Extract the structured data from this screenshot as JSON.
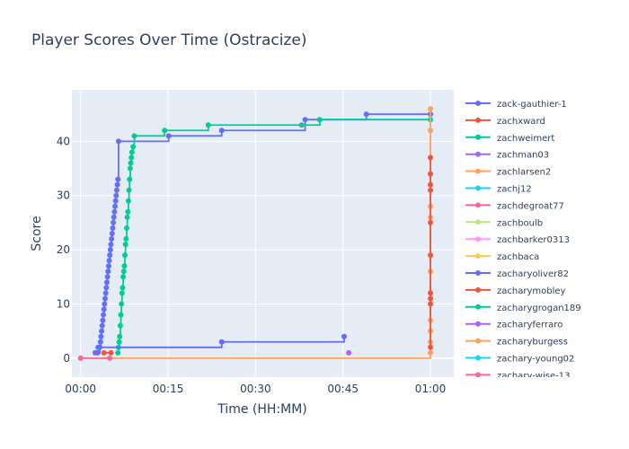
{
  "chart_data": {
    "type": "line",
    "line_shape": "step",
    "title": "Player Scores Over Time (Ostracize)",
    "xlabel": "Time (HH:MM)",
    "ylabel": "Score",
    "x_unit": "minutes",
    "xlim": [
      -1.5,
      64
    ],
    "ylim": [
      -3.5,
      49.5
    ],
    "x_ticks": [
      {
        "value": 0,
        "label": "00:00"
      },
      {
        "value": 15,
        "label": "00:15"
      },
      {
        "value": 30,
        "label": "00:30"
      },
      {
        "value": 45,
        "label": "00:45"
      },
      {
        "value": 60,
        "label": "01:00"
      }
    ],
    "y_ticks": [
      0,
      10,
      20,
      30,
      40
    ],
    "grid": true,
    "legend_position": "right",
    "series": [
      {
        "name": "zack-gauthier-1",
        "color": "#636efa",
        "x": [
          2.5,
          2.9,
          3.3,
          3.4,
          3.5,
          3.6,
          3.7,
          3.8,
          3.9,
          4.0,
          4.1,
          4.2,
          4.3,
          4.4,
          4.5,
          4.6,
          4.7,
          4.8,
          4.9,
          5.0,
          5.1,
          5.2,
          5.3,
          5.4,
          5.5,
          5.6,
          5.7,
          5.8,
          5.9,
          6.0,
          6.1,
          6.2,
          6.3,
          6.4,
          6.5,
          15.1,
          24.2,
          38.5,
          49.0,
          60.0
        ],
        "y": [
          1,
          1,
          2,
          3,
          4,
          5,
          6,
          7,
          8,
          9,
          10,
          11,
          12,
          13,
          14,
          15,
          16,
          17,
          18,
          19,
          20,
          21,
          22,
          23,
          24,
          25,
          26,
          27,
          28,
          29,
          30,
          31,
          32,
          33,
          40,
          41,
          42,
          44,
          45,
          45
        ]
      },
      {
        "name": "zachxward",
        "color": "#EF553B",
        "x": [
          4.0,
          5.2
        ],
        "y": [
          1,
          1
        ]
      },
      {
        "name": "zachweimert",
        "color": "#00cc96",
        "x": [
          6.4,
          6.5,
          6.6,
          6.7,
          6.8,
          6.9,
          7.0,
          7.1,
          7.2,
          7.3,
          7.4,
          7.5,
          7.6,
          7.7,
          7.8,
          7.9,
          8.0,
          8.1,
          8.2,
          8.3,
          8.4,
          8.5,
          8.6,
          8.7,
          8.8,
          9.0,
          9.2,
          14.4,
          21.9,
          37.9,
          41.0,
          60.0
        ],
        "y": [
          1,
          2,
          3,
          4,
          6,
          8,
          10,
          12,
          13,
          15,
          16,
          17,
          19,
          21,
          22,
          24,
          26,
          27,
          29,
          31,
          33,
          35,
          36,
          37,
          38,
          39,
          41,
          42,
          43,
          43,
          44,
          44
        ]
      },
      {
        "name": "zachman03",
        "color": "#ab63fa",
        "x": [
          46.0
        ],
        "y": [
          1
        ]
      },
      {
        "name": "zachlarsen2",
        "color": "#FFA15A",
        "x": [
          0.0,
          60.0,
          60.0,
          60.0,
          60.0,
          60.0,
          60.0,
          60.0,
          60.0,
          60.0
        ],
        "y": [
          0,
          1,
          3,
          5,
          7,
          16,
          26,
          28,
          42,
          46
        ]
      },
      {
        "name": "zachj12",
        "color": "#19d3f3",
        "x": [],
        "y": []
      },
      {
        "name": "zachdegroat77",
        "color": "#FF6692",
        "x": [
          0.0,
          5.0
        ],
        "y": [
          0,
          0
        ]
      },
      {
        "name": "zachboulb",
        "color": "#B6E880",
        "x": [],
        "y": []
      },
      {
        "name": "zachbarker0313",
        "color": "#FF97FF",
        "x": [],
        "y": []
      },
      {
        "name": "zachbaca",
        "color": "#FECB52",
        "x": [],
        "y": []
      },
      {
        "name": "zacharyoliver82",
        "color": "#636efa",
        "x": [
          3.0,
          24.2,
          45.2
        ],
        "y": [
          2,
          3,
          4
        ]
      },
      {
        "name": "zacharymobley",
        "color": "#EF553B",
        "x": [
          60.0,
          60.0,
          60.0,
          60.0,
          60.0,
          60.0,
          60.0,
          60.0,
          60.0,
          60.0
        ],
        "y": [
          2,
          10,
          11,
          12,
          19,
          25,
          31,
          32,
          34,
          37
        ]
      },
      {
        "name": "zacharygrogan189",
        "color": "#00cc96",
        "x": [],
        "y": []
      },
      {
        "name": "zacharyferraro",
        "color": "#ab63fa",
        "x": [],
        "y": []
      },
      {
        "name": "zacharyburgess",
        "color": "#FFA15A",
        "x": [],
        "y": []
      },
      {
        "name": "zachary-young02",
        "color": "#19d3f3",
        "x": [],
        "y": []
      },
      {
        "name": "zachary-wise-13",
        "color": "#FF6692",
        "x": [],
        "y": []
      }
    ]
  }
}
